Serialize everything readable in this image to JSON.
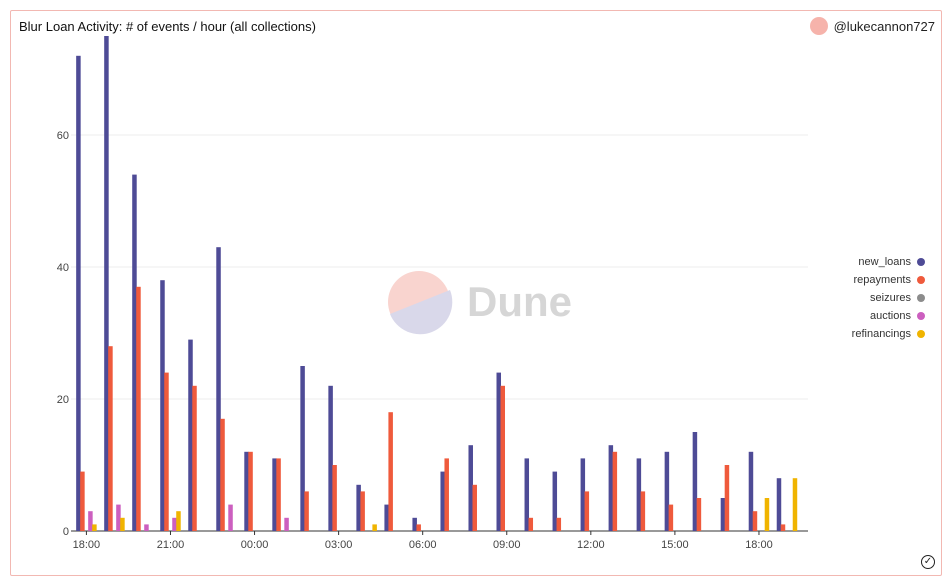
{
  "title": "Blur Loan Activity: # of events / hour (all collections)",
  "author": "@lukecannon727",
  "watermark": "Dune",
  "colors": {
    "new_loans": "#4e4b96",
    "repayments": "#ef5a3c",
    "seizures": "#8c8c8c",
    "auctions": "#cc5fbf",
    "refinancings": "#f0b400",
    "accent": "#f6b3ab"
  },
  "chart_data": {
    "type": "bar",
    "x_ticks": [
      "18:00",
      "21:00",
      "00:00",
      "03:00",
      "06:00",
      "09:00",
      "12:00",
      "15:00",
      "18:00"
    ],
    "y_ticks": [
      "0",
      "20",
      "40",
      "60"
    ],
    "ylim": [
      0,
      75
    ],
    "grid": true,
    "legend_position": "right",
    "x_hours": [
      18,
      19,
      20,
      21,
      22,
      23,
      0,
      1,
      2,
      3,
      4,
      5,
      6,
      7,
      8,
      9,
      10,
      11,
      12,
      13,
      14,
      15,
      16,
      17,
      18,
      19
    ],
    "series": [
      {
        "name": "new_loans",
        "color": "#4e4b96",
        "values": [
          72,
          75,
          54,
          38,
          29,
          43,
          12,
          11,
          25,
          22,
          7,
          4,
          2,
          9,
          13,
          24,
          11,
          9,
          11,
          13,
          11,
          12,
          15,
          5,
          12,
          8
        ]
      },
      {
        "name": "repayments",
        "color": "#ef5a3c",
        "values": [
          9,
          28,
          37,
          24,
          22,
          17,
          12,
          11,
          6,
          10,
          6,
          18,
          1,
          11,
          7,
          22,
          2,
          2,
          6,
          12,
          6,
          4,
          5,
          10,
          3,
          1
        ]
      },
      {
        "name": "seizures",
        "color": "#8c8c8c",
        "values": [
          0,
          0,
          0,
          0,
          0,
          0,
          0,
          0,
          0,
          0,
          0,
          0,
          0,
          0,
          0,
          0,
          0,
          0,
          0,
          0,
          0,
          0,
          0,
          0,
          0,
          0
        ]
      },
      {
        "name": "auctions",
        "color": "#cc5fbf",
        "values": [
          3,
          4,
          1,
          2,
          0,
          4,
          0,
          2,
          0,
          0,
          0,
          0,
          0,
          0,
          0,
          0,
          0,
          0,
          0,
          0,
          0,
          0,
          0,
          0,
          0,
          0
        ]
      },
      {
        "name": "refinancings",
        "color": "#f0b400",
        "values": [
          1,
          2,
          0,
          3,
          0,
          0,
          0,
          0,
          0,
          0,
          1,
          0,
          0,
          0,
          0,
          0,
          0,
          0,
          0,
          0,
          0,
          0,
          0,
          0,
          5,
          8
        ]
      }
    ]
  }
}
